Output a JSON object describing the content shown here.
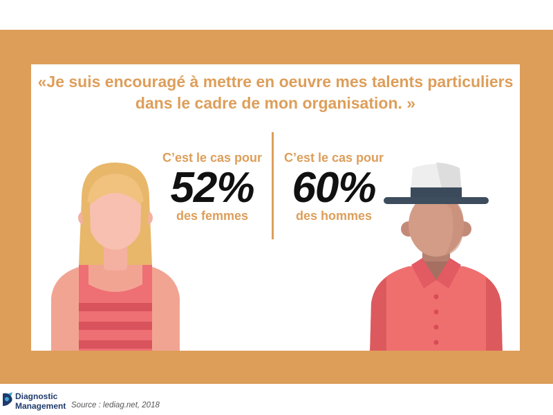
{
  "quote": {
    "line1": "«Je suis encouragé à mettre en oeuvre mes talents particuliers",
    "line2": "dans le cadre de mon organisation. »"
  },
  "stats": {
    "women": {
      "lead": "C’est le cas pour",
      "percent": "52%",
      "tail": "des femmes"
    },
    "men": {
      "lead": "C’est le cas pour",
      "percent": "60%",
      "tail": "des hommes"
    }
  },
  "footer": {
    "brand_line1": "Diagnostic",
    "brand_line2": "Management",
    "source": "Source : lediag.net, 2018"
  },
  "icons": {
    "woman": "woman-illustration-icon",
    "man": "man-with-hat-illustration-icon",
    "logo": "diagnostic-management-logo-icon"
  },
  "colors": {
    "frame": "#dd9e5a",
    "accent_text": "#dd9e5a",
    "percent_text": "#111111",
    "shirt": "#ef6f6f",
    "brand": "#1f3a6b"
  }
}
